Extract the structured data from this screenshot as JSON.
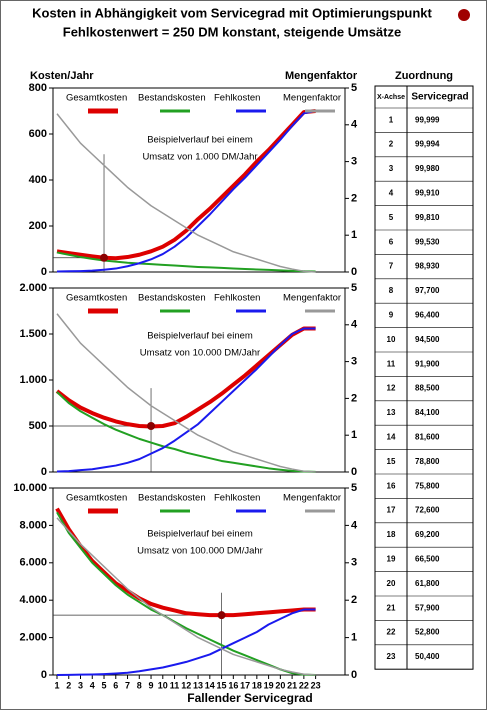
{
  "title": [
    "Kosten in Abhängigkeit vom Servicegrad mit Optimierungspunkt",
    "Fehlkostenwert = 250 DM konstant, steigende Umsätze"
  ],
  "table": {
    "title": "Zuordnung",
    "header": [
      "X-Achse",
      "Servicegrad"
    ],
    "rows": [
      [
        "1",
        "99,999"
      ],
      [
        "2",
        "99,994"
      ],
      [
        "3",
        "99,980"
      ],
      [
        "4",
        "99,910"
      ],
      [
        "5",
        "99,810"
      ],
      [
        "6",
        "99,530"
      ],
      [
        "7",
        "98,930"
      ],
      [
        "8",
        "97,700"
      ],
      [
        "9",
        "96,400"
      ],
      [
        "10",
        "94,500"
      ],
      [
        "11",
        "91,900"
      ],
      [
        "12",
        "88,500"
      ],
      [
        "13",
        "84,100"
      ],
      [
        "14",
        "81,600"
      ],
      [
        "15",
        "78,800"
      ],
      [
        "16",
        "75,800"
      ],
      [
        "17",
        "72,600"
      ],
      [
        "18",
        "69,200"
      ],
      [
        "19",
        "66,500"
      ],
      [
        "20",
        "61,800"
      ],
      [
        "21",
        "57,900"
      ],
      [
        "22",
        "52,800"
      ],
      [
        "23",
        "50,400"
      ]
    ]
  },
  "chart_data": [
    {
      "type": "line",
      "ylabel": "Kosten/Jahr",
      "y2label": "Mengenfaktor",
      "annotation": [
        "Beispielverlauf bei einem",
        "Umsatz von 1.000 DM/Jahr"
      ],
      "x": [
        1,
        2,
        3,
        4,
        5,
        6,
        7,
        8,
        9,
        10,
        11,
        12,
        13,
        14,
        15,
        16,
        17,
        18,
        19,
        20,
        21,
        22,
        23
      ],
      "xlim": [
        0.66,
        25.5
      ],
      "ylim": [
        0,
        800
      ],
      "yticks": [
        0,
        200,
        400,
        600,
        800
      ],
      "y2lim": [
        0,
        5
      ],
      "y2ticks": [
        0,
        1,
        2,
        3,
        4,
        5
      ],
      "reference": {
        "x": 5,
        "y": 62,
        "y2": 3.2
      },
      "series": [
        {
          "name": "Gesamtkosten",
          "color": "#dd0000",
          "values": [
            90,
            82,
            75,
            68,
            62,
            60,
            65,
            75,
            90,
            110,
            140,
            180,
            230,
            275,
            325,
            375,
            425,
            480,
            530,
            585,
            640,
            695,
            700
          ]
        },
        {
          "name": "Bestandskosten",
          "color": "#22a022",
          "values": [
            85,
            75,
            65,
            57,
            50,
            45,
            40,
            37,
            34,
            31,
            28,
            25,
            22,
            20,
            18,
            15,
            13,
            11,
            9,
            7,
            5,
            3,
            2
          ]
        },
        {
          "name": "Fehlkosten",
          "color": "#1a1aee",
          "values": [
            2,
            3,
            4,
            6,
            10,
            15,
            25,
            38,
            55,
            78,
            110,
            150,
            200,
            250,
            305,
            360,
            410,
            465,
            520,
            575,
            635,
            690,
            700
          ]
        },
        {
          "name": "Mengenfaktor",
          "color": "#999999",
          "axis": "y2",
          "values": [
            4.3,
            3.9,
            3.5,
            3.2,
            2.9,
            2.6,
            2.3,
            2.05,
            1.8,
            1.6,
            1.4,
            1.2,
            1.0,
            0.85,
            0.7,
            0.55,
            0.45,
            0.35,
            0.25,
            0.15,
            0.08,
            0.02,
            0
          ]
        }
      ]
    },
    {
      "type": "line",
      "annotation": [
        "Beispielverlauf bei einem",
        "Umsatz von 10.000 DM/Jahr"
      ],
      "x": [
        1,
        2,
        3,
        4,
        5,
        6,
        7,
        8,
        9,
        10,
        11,
        12,
        13,
        14,
        15,
        16,
        17,
        18,
        19,
        20,
        21,
        22,
        23
      ],
      "xlim": [
        0.66,
        25.5
      ],
      "ylim": [
        0,
        2000
      ],
      "yticks": [
        0,
        500,
        {
          "value": 1000,
          "label": "1.000"
        },
        {
          "value": 1500,
          "label": "1.500"
        },
        {
          "value": 2000,
          "label": "2.000"
        }
      ],
      "y2lim": [
        0,
        5
      ],
      "y2ticks": [
        0,
        1,
        2,
        3,
        4,
        5
      ],
      "reference": {
        "x": 9,
        "y": 500,
        "y2": 2.28
      },
      "series": [
        {
          "name": "Gesamtkosten",
          "color": "#dd0000",
          "values": [
            880,
            780,
            700,
            640,
            590,
            550,
            520,
            500,
            495,
            500,
            530,
            600,
            680,
            760,
            850,
            950,
            1050,
            1160,
            1270,
            1380,
            1490,
            1560,
            1560
          ]
        },
        {
          "name": "Bestandskosten",
          "color": "#22a022",
          "values": [
            870,
            750,
            660,
            590,
            520,
            460,
            410,
            360,
            320,
            280,
            250,
            210,
            180,
            150,
            120,
            100,
            80,
            60,
            40,
            25,
            12,
            5,
            2
          ]
        },
        {
          "name": "Fehlkosten",
          "color": "#1a1aee",
          "values": [
            5,
            10,
            20,
            30,
            50,
            70,
            100,
            140,
            200,
            260,
            340,
            430,
            520,
            640,
            760,
            880,
            1000,
            1120,
            1250,
            1380,
            1500,
            1560,
            1560
          ]
        },
        {
          "name": "Mengenfaktor",
          "color": "#999999",
          "axis": "y2",
          "values": [
            4.3,
            3.9,
            3.5,
            3.2,
            2.9,
            2.6,
            2.3,
            2.05,
            1.8,
            1.6,
            1.4,
            1.2,
            1.0,
            0.85,
            0.7,
            0.55,
            0.45,
            0.35,
            0.25,
            0.15,
            0.08,
            0.02,
            0
          ]
        }
      ]
    },
    {
      "type": "line",
      "xlabel": "Fallender Servicegrad",
      "annotation": [
        "Beispielverlauf bei einem",
        "Umsatz von 100.000 DM/Jahr"
      ],
      "x": [
        1,
        2,
        3,
        4,
        5,
        6,
        7,
        8,
        9,
        10,
        11,
        12,
        13,
        14,
        15,
        16,
        17,
        18,
        19,
        20,
        21,
        22,
        23
      ],
      "xlim": [
        0.66,
        25.5
      ],
      "xticks": [
        1,
        2,
        3,
        4,
        5,
        6,
        7,
        8,
        9,
        10,
        11,
        12,
        13,
        14,
        15,
        16,
        17,
        18,
        19,
        20,
        21,
        22,
        23
      ],
      "ylim": [
        0,
        10000
      ],
      "yticks": [
        0,
        {
          "value": 2000,
          "label": "2.000"
        },
        {
          "value": 4000,
          "label": "4.000"
        },
        {
          "value": 6000,
          "label": "6.000"
        },
        {
          "value": 8000,
          "label": "8.000"
        },
        {
          "value": 10000,
          "label": "10.000"
        }
      ],
      "y2lim": [
        0,
        5
      ],
      "y2ticks": [
        0,
        1,
        2,
        3,
        4,
        5
      ],
      "reference": {
        "x": 15,
        "y": 3200,
        "y2": 2.2
      },
      "series": [
        {
          "name": "Gesamtkosten",
          "color": "#dd0000",
          "values": [
            8900,
            7800,
            6900,
            6100,
            5500,
            4900,
            4500,
            4100,
            3800,
            3600,
            3450,
            3300,
            3250,
            3200,
            3200,
            3200,
            3250,
            3300,
            3350,
            3400,
            3450,
            3500,
            3500
          ]
        },
        {
          "name": "Bestandskosten",
          "color": "#22a022",
          "values": [
            8700,
            7600,
            6800,
            6000,
            5400,
            4800,
            4300,
            3900,
            3500,
            3200,
            2850,
            2500,
            2200,
            1900,
            1600,
            1300,
            1050,
            800,
            550,
            300,
            100,
            20,
            0
          ]
        },
        {
          "name": "Fehlkosten",
          "color": "#1a1aee",
          "values": [
            0,
            10,
            20,
            30,
            50,
            80,
            120,
            200,
            300,
            400,
            550,
            700,
            900,
            1100,
            1400,
            1700,
            2000,
            2300,
            2700,
            3000,
            3300,
            3500,
            3500
          ]
        },
        {
          "name": "Mengenfaktor",
          "color": "#999999",
          "axis": "y2",
          "values": [
            4.2,
            3.85,
            3.5,
            3.2,
            2.9,
            2.6,
            2.3,
            2.05,
            1.8,
            1.6,
            1.4,
            1.2,
            1.0,
            0.85,
            0.7,
            0.55,
            0.45,
            0.35,
            0.25,
            0.15,
            0.08,
            0.02,
            0
          ]
        }
      ]
    }
  ]
}
